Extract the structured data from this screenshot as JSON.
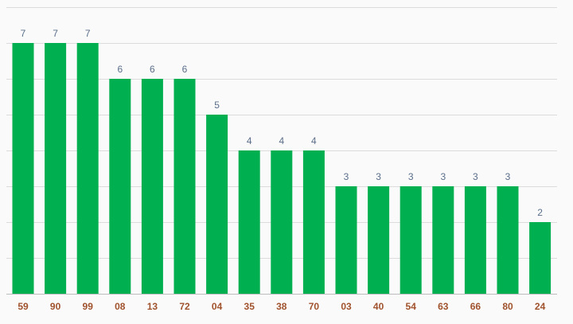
{
  "chart_data": {
    "type": "bar",
    "categories": [
      "59",
      "90",
      "99",
      "08",
      "13",
      "72",
      "04",
      "35",
      "38",
      "70",
      "03",
      "40",
      "54",
      "63",
      "66",
      "80",
      "24"
    ],
    "values": [
      7,
      7,
      7,
      6,
      6,
      6,
      5,
      4,
      4,
      4,
      3,
      3,
      3,
      3,
      3,
      3,
      2
    ],
    "ylim": [
      0,
      8
    ],
    "grid": true,
    "bar_color": "#00b050",
    "value_label_color": "#5a6e8a",
    "tick_label_color": "#a0522d"
  }
}
